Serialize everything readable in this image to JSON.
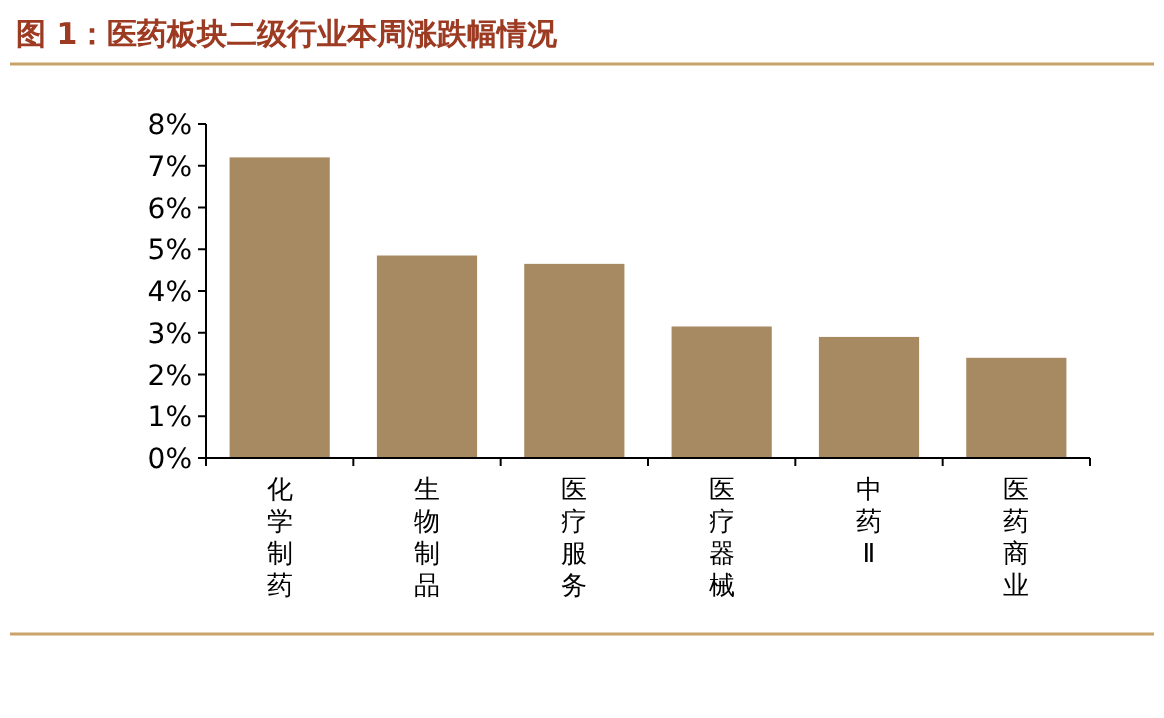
{
  "chart_data": {
    "type": "bar",
    "title": "图 1：医药板块二级行业本周涨跌幅情况",
    "categories": [
      "化学制药",
      "生物制品",
      "医疗服务",
      "医疗器械",
      "中药Ⅱ",
      "医药商业"
    ],
    "values": [
      7.2,
      4.85,
      4.65,
      3.15,
      2.9,
      2.4
    ],
    "color": "#a88a62",
    "ylim": [
      0,
      8
    ],
    "yticks": [
      {
        "value": 0,
        "label": "0%"
      },
      {
        "value": 1,
        "label": "1%"
      },
      {
        "value": 2,
        "label": "2%"
      },
      {
        "value": 3,
        "label": "3%"
      },
      {
        "value": 4,
        "label": "4%"
      },
      {
        "value": 5,
        "label": "5%"
      },
      {
        "value": 6,
        "label": "6%"
      },
      {
        "value": 7,
        "label": "7%"
      },
      {
        "value": 8,
        "label": "8%"
      }
    ],
    "grid": false
  }
}
